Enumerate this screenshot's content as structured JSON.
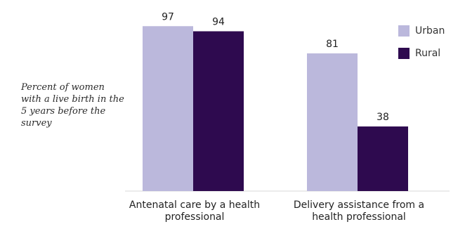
{
  "chart_data": {
    "type": "bar",
    "title": "",
    "ylabel": "Percent of women with a live birth in the 5 years before the survey",
    "categories": [
      "Antenatal care by a health professional",
      "Delivery assistance from a health professional"
    ],
    "series": [
      {
        "name": "Urban",
        "values": [
          97,
          81
        ],
        "color": "#bbb8dc"
      },
      {
        "name": "Rural",
        "values": [
          94,
          38
        ],
        "color": "#2e0a4f"
      }
    ],
    "ylim": [
      0,
      100
    ],
    "grid": false,
    "legend": "top-right"
  }
}
